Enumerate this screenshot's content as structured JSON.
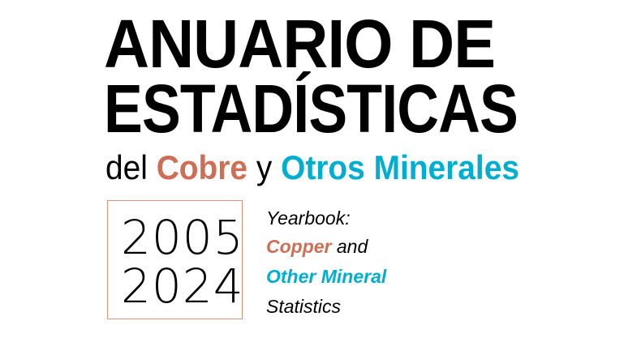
{
  "title": {
    "line1": "ANUARIO DE",
    "line2": "ESTADÍSTICAS"
  },
  "subtitle": {
    "prefix": "del",
    "copper": "Cobre",
    "connector": "y",
    "others": "Otros Minerales"
  },
  "years": {
    "start": "2005",
    "end": "2024"
  },
  "english": {
    "line1": "Yearbook:",
    "copper": "Copper",
    "and": "and",
    "others": "Other Mineral",
    "line4": "Statistics"
  },
  "colors": {
    "copper": "#cd6e55",
    "cyan": "#00aed0",
    "box_border": "#d9937f"
  }
}
